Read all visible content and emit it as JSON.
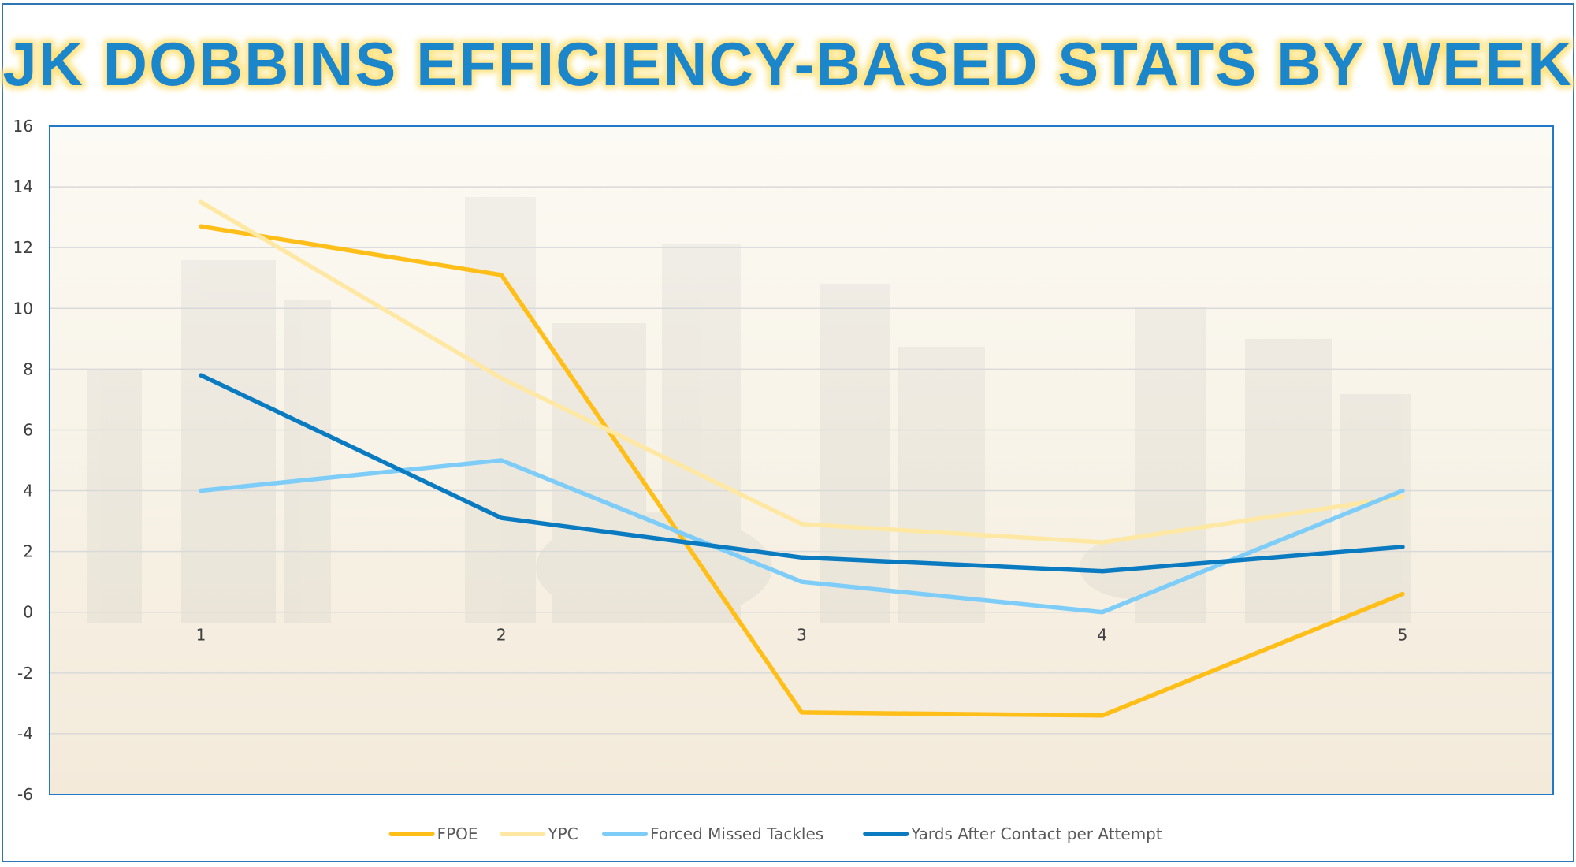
{
  "chart_data": {
    "type": "line",
    "title": "JK DOBBINS EFFICIENCY-BASED STATS BY WEEK",
    "xlabel": "",
    "ylabel": "",
    "categories": [
      "1",
      "2",
      "3",
      "4",
      "5"
    ],
    "ylim": [
      -6,
      16
    ],
    "yticks": [
      -6,
      -4,
      -2,
      0,
      2,
      4,
      6,
      8,
      10,
      12,
      14,
      16
    ],
    "grid": true,
    "legend_position": "bottom",
    "series": [
      {
        "name": "FPOE",
        "color": "#FFBE18",
        "values": [
          12.7,
          11.1,
          -3.3,
          -3.4,
          0.6
        ]
      },
      {
        "name": "YPC",
        "color": "#FFE8A3",
        "values": [
          13.5,
          7.7,
          2.9,
          2.3,
          3.8
        ]
      },
      {
        "name": "Forced Missed Tackles",
        "color": "#7ECDF8",
        "values": [
          4,
          5,
          1,
          0,
          4
        ]
      },
      {
        "name": "Yards After Contact per Attempt",
        "color": "#0A7BC0",
        "values": [
          7.8,
          3.1,
          1.8,
          1.35,
          2.15
        ]
      }
    ],
    "colors": {
      "title_fill": "#1A86CB",
      "title_glow": "#FFE27A",
      "frame": "#2E75B6",
      "plot_border": "#1F78C8",
      "gridline": "#D9D9D9"
    }
  }
}
